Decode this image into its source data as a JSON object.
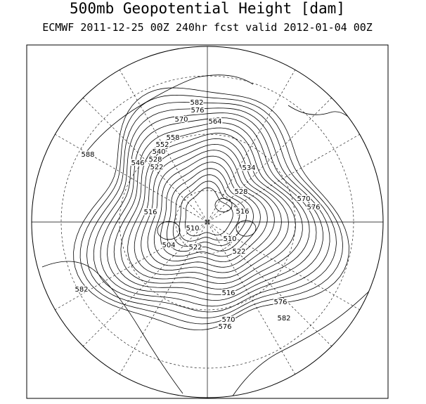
{
  "title": "500mb Geopotential Height [dam]",
  "subtitle": "ECMWF 2011-12-25 00Z 240hr fcst valid 2012-01-04 00Z",
  "contour_labels": [
    "582",
    "576",
    "570",
    "564",
    "558",
    "552",
    "540",
    "528",
    "546",
    "522",
    "588",
    "534",
    "528",
    "516",
    "516",
    "510",
    "510",
    "504",
    "522",
    "522",
    "570",
    "576",
    "582",
    "576",
    "582",
    "516",
    "570",
    "576"
  ]
}
